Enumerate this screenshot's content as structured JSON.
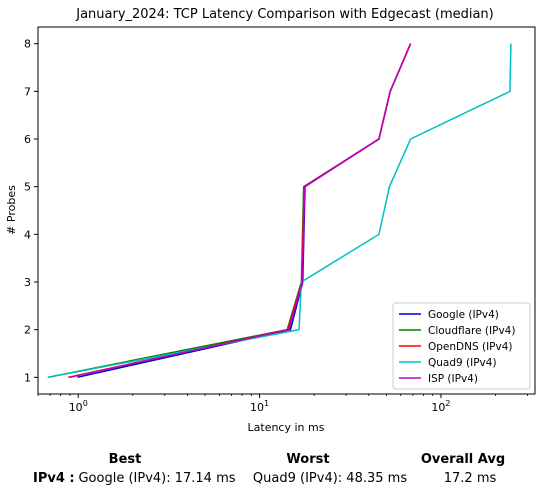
{
  "chart_data": {
    "type": "line",
    "title": "January_2024: TCP Latency Comparison with Edgecast (median)",
    "xlabel": "Latency in ms",
    "ylabel": "# Probes",
    "xscale": "log",
    "xlim": [
      0.6,
      330
    ],
    "ylim": [
      0.65,
      8.35
    ],
    "x_ticks": [
      1,
      10,
      100
    ],
    "x_tick_labels": [
      "10^0",
      "10^1",
      "10^2"
    ],
    "y_ticks": [
      1,
      2,
      3,
      4,
      5,
      6,
      7,
      8
    ],
    "grid": false,
    "legend_position": "bottom-right",
    "series": [
      {
        "name": "Google (IPv4)",
        "color": "#0000cc",
        "x": [
          0.99,
          14.8,
          17.3,
          17.8,
          45.5,
          52.5,
          68.0
        ],
        "y": [
          1,
          2,
          3,
          5,
          6,
          7,
          8
        ]
      },
      {
        "name": "Cloudflare (IPv4)",
        "color": "#008000",
        "x": [
          0.68,
          14.2,
          17.0,
          17.5,
          45.5,
          52.5,
          68.0
        ],
        "y": [
          1,
          2,
          3,
          5,
          6,
          7,
          8
        ]
      },
      {
        "name": "OpenDNS (IPv4)",
        "color": "#ff0000",
        "x": [
          0.88,
          14.3,
          17.1,
          17.6,
          45.5,
          52.5,
          68.0
        ],
        "y": [
          1,
          2,
          3,
          5,
          6,
          7,
          8
        ]
      },
      {
        "name": "Quad9 (IPv4)",
        "color": "#00bfbf",
        "x": [
          0.68,
          16.5,
          17.0,
          45.5,
          52.0,
          68.0,
          240.0,
          243.0
        ],
        "y": [
          1,
          2,
          3,
          4,
          5,
          6,
          7,
          8
        ]
      },
      {
        "name": "ISP (IPv4)",
        "color": "#bf00bf",
        "x": [
          0.9,
          14.5,
          17.2,
          17.7,
          45.5,
          52.5,
          68.0
        ],
        "y": [
          1,
          2,
          3,
          5,
          6,
          7,
          8
        ]
      }
    ]
  },
  "summary": {
    "headers": {
      "best": "Best",
      "worst": "Worst",
      "avg": "Overall Avg"
    },
    "row_label": "IPv4 :",
    "best": "Google (IPv4): 17.14 ms",
    "worst": "Quad9 (IPv4): 48.35 ms",
    "avg": "17.2 ms"
  }
}
